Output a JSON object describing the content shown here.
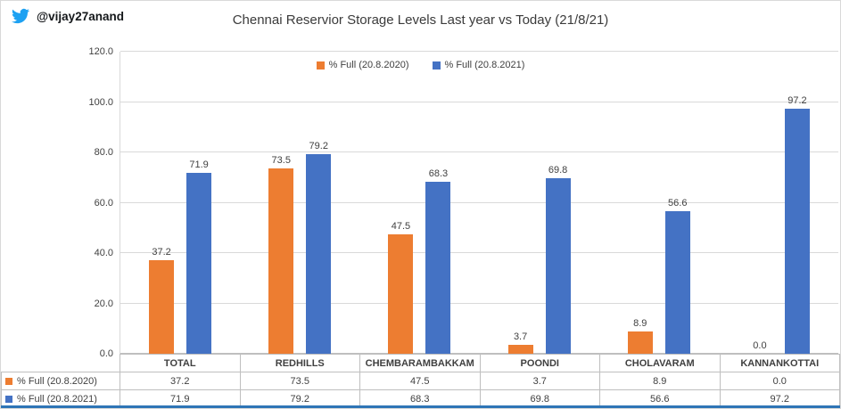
{
  "header": {
    "handle": "@vijay27anand",
    "title": "Chennai Reservior Storage Levels Last year vs Today (21/8/21)"
  },
  "colors": {
    "series_2020": "#ED7D31",
    "series_2021": "#4472C4",
    "twitter_blue": "#1DA1F2",
    "bottom_rule": "#2E75B6",
    "gridline": "#D9D9D9",
    "table_border": "#BFBFBF",
    "text": "#404040"
  },
  "chart_data": {
    "type": "bar",
    "title": "Chennai Reservior Storage Levels Last year vs Today (21/8/21)",
    "categories": [
      "TOTAL",
      "REDHILLS",
      "CHEMBARAMBAKKAM",
      "POONDI",
      "CHOLAVARAM",
      "KANNANKOTTAI"
    ],
    "series": [
      {
        "name": "% Full (20.8.2020)",
        "color": "#ED7D31",
        "values": [
          37.2,
          73.5,
          47.5,
          3.7,
          8.9,
          0.0
        ]
      },
      {
        "name": "% Full (20.8.2021)",
        "color": "#4472C4",
        "values": [
          71.9,
          79.2,
          68.3,
          69.8,
          56.6,
          97.2
        ]
      }
    ],
    "xlabel": "",
    "ylabel": "",
    "ylim": [
      0,
      120
    ],
    "ytick_step": 20,
    "grid": true,
    "legend_position": "top",
    "value_labels": true,
    "data_table_shown": true
  }
}
